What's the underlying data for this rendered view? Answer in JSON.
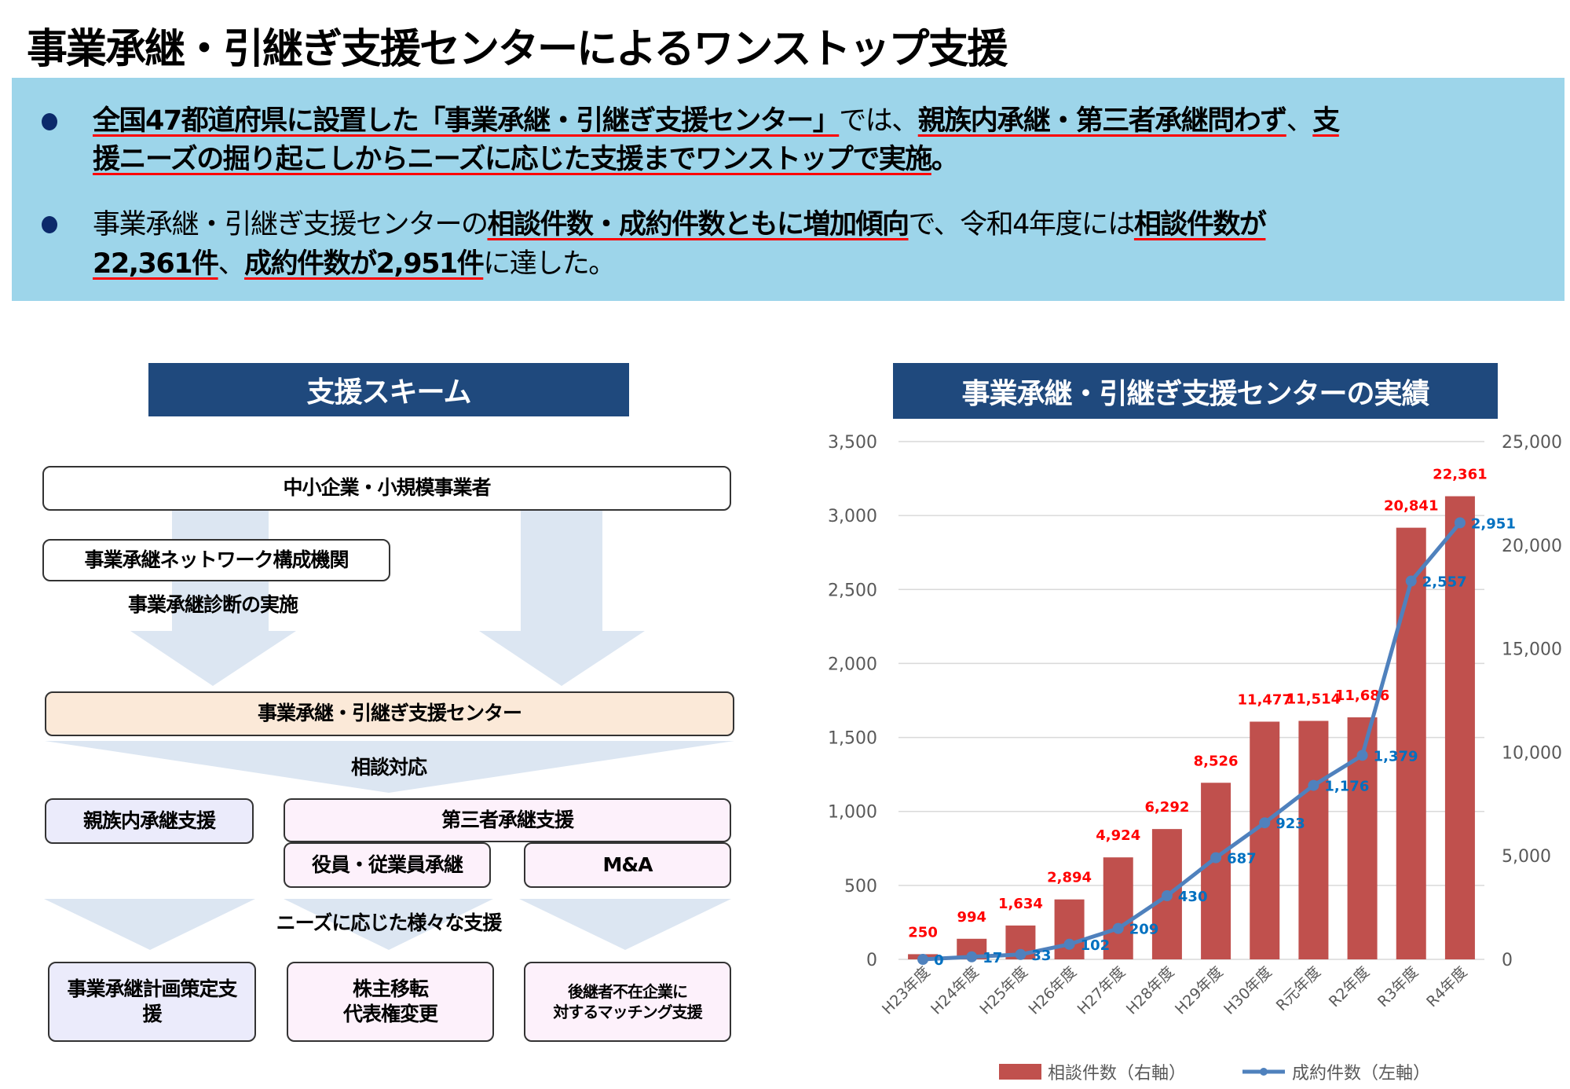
{
  "title": "事業承継・引継ぎ支援センターによるワンストップ支援",
  "summary": {
    "bullets": [
      {
        "lines": [
          [
            {
              "t": "全国47都道府県に設置した「事業承継・引継ぎ支援センター」",
              "s": "u"
            },
            {
              "t": "では、",
              "s": "n"
            },
            {
              "t": "親族内承継・第三者承継問わず",
              "s": "u"
            },
            {
              "t": "、",
              "s": "n"
            },
            {
              "t": "支",
              "s": "u"
            }
          ],
          [
            {
              "t": "援ニーズの掘り起こしからニーズに応じた支援までワンストップで実施",
              "s": "u"
            },
            {
              "t": "。",
              "s": "b"
            }
          ]
        ]
      },
      {
        "lines": [
          [
            {
              "t": "事業承継・引継ぎ支援センターの",
              "s": "n"
            },
            {
              "t": "相談件数・成約件数ともに増加傾向",
              "s": "u"
            },
            {
              "t": "で、令和4年度には",
              "s": "n"
            },
            {
              "t": "相談件数が",
              "s": "u"
            }
          ],
          [
            {
              "t": "22,361件",
              "s": "u"
            },
            {
              "t": "、",
              "s": "n"
            },
            {
              "t": "成約件数が2,951件",
              "s": "u"
            },
            {
              "t": "に達した。",
              "s": "n"
            }
          ]
        ]
      }
    ],
    "bullet_color": "#0c2a6b",
    "underline_color": "#ff0000"
  },
  "scheme": {
    "header": "支援スキーム",
    "smes": "中小企業・小規模事業者",
    "network": "事業承継ネットワーク構成機関",
    "diagnosis": "事業承継診断の実施",
    "center": "事業承継・引継ぎ支援センター",
    "consult": "相談対応",
    "family": "親族内承継支援",
    "third_party": "第三者承継支援",
    "employee": "役員・従業員承継",
    "ma": "M&A",
    "needs": "ニーズに応じた様々な支援",
    "plan": "事業承継計画策定支援",
    "shares_line1": "株主移転",
    "shares_line2": "代表権変更",
    "matching_line1": "後継者不在企業に",
    "matching_line2": "対するマッチング支援"
  },
  "chart_data": {
    "type": "bar+line",
    "title": "事業承継・引継ぎ支援センターの実績",
    "categories": [
      "H23年度",
      "H24年度",
      "H25年度",
      "H26年度",
      "H27年度",
      "H28年度",
      "H29年度",
      "H30年度",
      "R元年度",
      "R2年度",
      "R3年度",
      "R4年度"
    ],
    "series": [
      {
        "name": "相談件数（右軸）",
        "type": "bar",
        "axis": "right",
        "color": "#c0504d",
        "label_color": "#ff0000",
        "values": [
          250,
          994,
          1634,
          2894,
          4924,
          6292,
          8526,
          11477,
          11514,
          11686,
          20841,
          22361
        ]
      },
      {
        "name": "成約件数（左軸）",
        "type": "line",
        "axis": "left",
        "color": "#4f81bd",
        "label_color": "#0070c0",
        "values": [
          0,
          17,
          33,
          102,
          209,
          430,
          687,
          923,
          1176,
          1379,
          2557,
          2951
        ]
      }
    ],
    "y_left": {
      "min": 0,
      "max": 3500,
      "ticks": [
        "0",
        "500",
        "1,000",
        "1,500",
        "2,000",
        "2,500",
        "3,000",
        "3,500"
      ]
    },
    "y_right": {
      "min": 0,
      "max": 25000,
      "ticks": [
        "0",
        "5,000",
        "10,000",
        "15,000",
        "20,000",
        "25,000"
      ]
    },
    "grid": true,
    "legend": "bottom"
  }
}
